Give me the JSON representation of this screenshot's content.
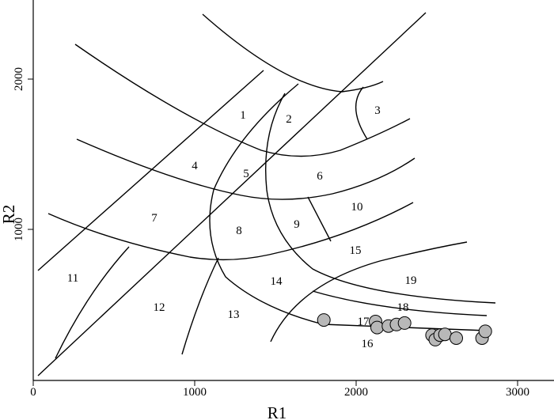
{
  "chart_data": {
    "type": "scatter",
    "xlabel": "R1",
    "ylabel": "R2",
    "xlim": [
      0,
      3200
    ],
    "ylim": [
      0,
      2500
    ],
    "x_ticks": [
      "0",
      "1000",
      "2000",
      "3000"
    ],
    "y_ticks": [
      "1000",
      "2000"
    ],
    "grid": false,
    "field_labels": [
      "1",
      "2",
      "3",
      "4",
      "5",
      "6",
      "7",
      "8",
      "9",
      "10",
      "11",
      "12",
      "13",
      "14",
      "15",
      "16",
      "17",
      "18",
      "19"
    ],
    "points": [
      {
        "x": 1800,
        "y": 400
      },
      {
        "x": 2120,
        "y": 390
      },
      {
        "x": 2130,
        "y": 350
      },
      {
        "x": 2200,
        "y": 360
      },
      {
        "x": 2250,
        "y": 370
      },
      {
        "x": 2300,
        "y": 380
      },
      {
        "x": 2470,
        "y": 300
      },
      {
        "x": 2490,
        "y": 270
      },
      {
        "x": 2520,
        "y": 300
      },
      {
        "x": 2550,
        "y": 305
      },
      {
        "x": 2620,
        "y": 280
      },
      {
        "x": 2780,
        "y": 280
      },
      {
        "x": 2800,
        "y": 325
      }
    ],
    "sample_color": "#b8b8b8"
  }
}
